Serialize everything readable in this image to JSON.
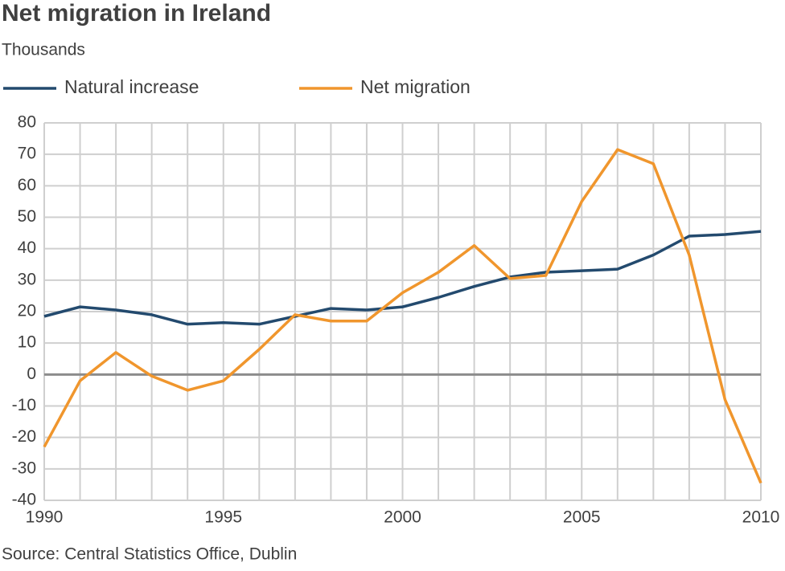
{
  "chart_data": {
    "type": "line",
    "title": "Net migration in Ireland",
    "subtitle": "Thousands",
    "source": "Source: Central Statistics Office, Dublin",
    "x": [
      1990,
      1991,
      1992,
      1993,
      1994,
      1995,
      1996,
      1997,
      1998,
      1999,
      2000,
      2001,
      2002,
      2003,
      2004,
      2005,
      2006,
      2007,
      2008,
      2009,
      2010
    ],
    "series": [
      {
        "name": "Natural increase",
        "color": "#234a6e",
        "values": [
          18.5,
          21.5,
          20.5,
          19,
          16,
          16.5,
          16,
          18.5,
          21,
          20.5,
          21.5,
          24.5,
          28,
          31,
          32.5,
          33,
          33.5,
          38,
          44,
          44.5,
          45.5
        ]
      },
      {
        "name": "Net migration",
        "color": "#f0962d",
        "values": [
          -23,
          -2,
          7,
          -0.5,
          -5,
          -2,
          8,
          19,
          17,
          17,
          26,
          32.5,
          41,
          30.5,
          31.5,
          55,
          71.5,
          67,
          38,
          -8,
          -34.5
        ]
      }
    ],
    "xlim": [
      1990,
      2010
    ],
    "xticks": [
      1990,
      1995,
      2000,
      2005,
      2010
    ],
    "ylim": [
      -40,
      80
    ],
    "yticks": [
      -40,
      -30,
      -20,
      -10,
      0,
      10,
      20,
      30,
      40,
      50,
      60,
      70,
      80
    ],
    "grid": true
  }
}
